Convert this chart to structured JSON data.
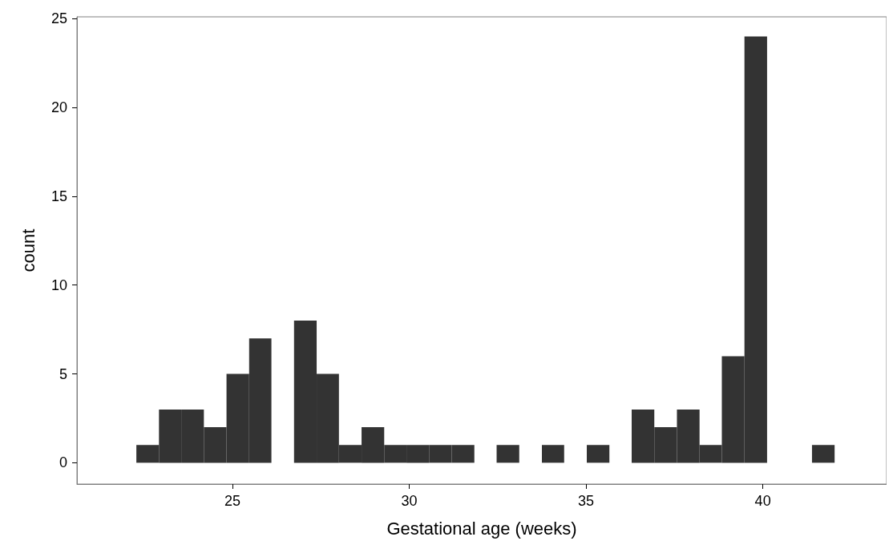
{
  "chart_data": {
    "type": "histogram",
    "xlabel": "Gestational age (weeks)",
    "ylabel": "count",
    "color": "#333333",
    "bins": [
      22.28,
      22.92,
      23.55,
      24.19,
      24.83,
      25.47,
      26.1,
      26.74,
      27.38,
      28.01,
      28.65,
      29.29,
      29.92,
      30.56,
      31.2,
      31.84,
      32.47,
      33.11,
      33.75,
      34.38,
      35.02,
      35.66,
      36.29,
      36.93,
      37.57,
      38.21,
      38.84,
      39.48,
      40.12,
      40.75,
      41.39,
      42.03
    ],
    "values": [
      1,
      3,
      3,
      2,
      5,
      7,
      0,
      8,
      5,
      1,
      2,
      1,
      1,
      1,
      1,
      0,
      1,
      0,
      1,
      0,
      1,
      0,
      3,
      2,
      3,
      1,
      6,
      24,
      0,
      0,
      1
    ],
    "xlim": [
      20.6,
      43.5
    ],
    "xticks": [
      25,
      30,
      35,
      40
    ],
    "ylim": [
      -1.2,
      25.1
    ],
    "yticks": [
      0,
      5,
      10,
      15,
      20,
      25
    ],
    "grid": false
  }
}
